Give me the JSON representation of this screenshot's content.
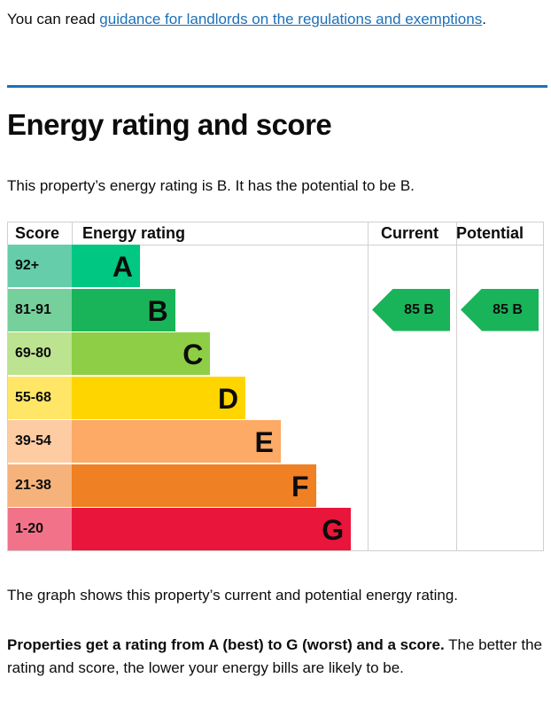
{
  "intro": {
    "prefix": "You can read ",
    "link": "guidance for landlords on the regulations and exemptions",
    "suffix": "."
  },
  "title": "Energy rating and score",
  "summary": "This property’s energy rating is B. It has the potential to be B.",
  "chart_data": {
    "type": "table",
    "headers": {
      "score": "Score",
      "rating": "Energy rating",
      "current": "Current",
      "potential": "Potential"
    },
    "bands": [
      {
        "score": "92+",
        "letter": "A",
        "color": "#00c781",
        "light": "#66cdaa"
      },
      {
        "score": "81-91",
        "letter": "B",
        "color": "#19b459",
        "light": "#75d09b"
      },
      {
        "score": "69-80",
        "letter": "C",
        "color": "#8dce46",
        "light": "#bce390"
      },
      {
        "score": "55-68",
        "letter": "D",
        "color": "#ffd500",
        "light": "#ffe666"
      },
      {
        "score": "39-54",
        "letter": "E",
        "color": "#fcaa65",
        "light": "#fdcca3"
      },
      {
        "score": "21-38",
        "letter": "F",
        "color": "#ef8023",
        "light": "#f5b37b"
      },
      {
        "score": "1-20",
        "letter": "G",
        "color": "#e9153b",
        "light": "#f27389"
      }
    ],
    "current": {
      "label": "85 B",
      "band_index": 1
    },
    "potential": {
      "label": "85 B",
      "band_index": 1
    }
  },
  "caption": "The graph shows this property’s current and potential energy rating.",
  "explain": {
    "bold": "Properties get a rating from A (best) to G (worst) and a score.",
    "rest": " The better the rating and score, the lower your energy bills are likely to be."
  }
}
